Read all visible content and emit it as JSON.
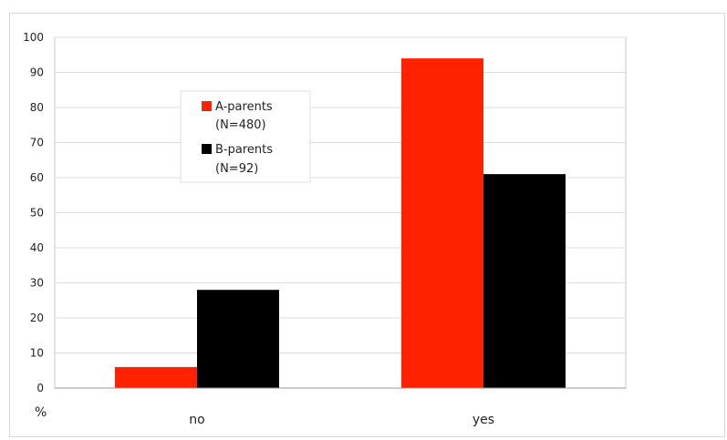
{
  "chart_data": {
    "type": "bar",
    "categories": [
      "no",
      "yes"
    ],
    "series": [
      {
        "name": "A-parents",
        "sub": "(N=480)",
        "color": "#ff2200",
        "values": [
          6,
          94
        ]
      },
      {
        "name": "B-parents",
        "sub": "(N=92)",
        "color": "#000000",
        "values": [
          28,
          61
        ]
      }
    ],
    "ylim": [
      0,
      100
    ],
    "yticks": [
      0,
      10,
      20,
      30,
      40,
      50,
      60,
      70,
      80,
      90,
      100
    ],
    "unit_label": "%",
    "grid": true,
    "legend_position": "upper-left inside plot"
  }
}
